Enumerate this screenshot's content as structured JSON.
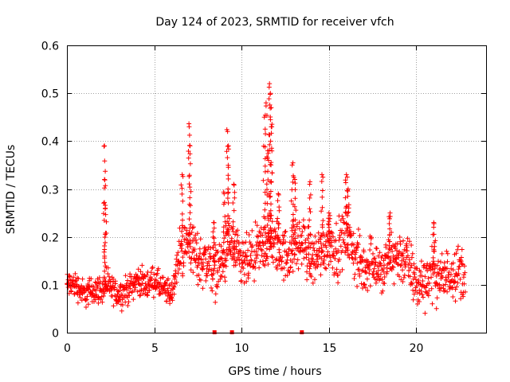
{
  "chart_data": {
    "type": "scatter",
    "title": "Day 124 of 2023, SRMTID for receiver vfch",
    "xlabel": "GPS time / hours",
    "ylabel": "SRMTID / TECUs",
    "xlim": [
      0,
      24
    ],
    "ylim": [
      0,
      0.6
    ],
    "xticks": [
      "0",
      "5",
      "10",
      "15",
      "20"
    ],
    "yticks": [
      "0",
      "0.1",
      "0.2",
      "0.3",
      "0.4",
      "0.5",
      "0.6"
    ],
    "grid": true,
    "marker": "plus",
    "color": "#ff0000",
    "series": [
      {
        "name": "SRMTID",
        "trend": [
          [
            0.0,
            0.1
          ],
          [
            0.5,
            0.1
          ],
          [
            1.0,
            0.08
          ],
          [
            1.5,
            0.09
          ],
          [
            2.0,
            0.09
          ],
          [
            2.3,
            0.1
          ],
          [
            2.5,
            0.09
          ],
          [
            3.0,
            0.08
          ],
          [
            3.5,
            0.09
          ],
          [
            4.0,
            0.11
          ],
          [
            4.5,
            0.1
          ],
          [
            5.0,
            0.11
          ],
          [
            5.5,
            0.09
          ],
          [
            6.0,
            0.08
          ],
          [
            6.2,
            0.12
          ],
          [
            6.5,
            0.17
          ],
          [
            7.0,
            0.19
          ],
          [
            7.5,
            0.15
          ],
          [
            8.0,
            0.15
          ],
          [
            8.5,
            0.13
          ],
          [
            9.0,
            0.15
          ],
          [
            9.3,
            0.19
          ],
          [
            9.5,
            0.17
          ],
          [
            10.0,
            0.14
          ],
          [
            10.5,
            0.15
          ],
          [
            11.0,
            0.17
          ],
          [
            11.5,
            0.19
          ],
          [
            12.0,
            0.18
          ],
          [
            12.5,
            0.16
          ],
          [
            13.0,
            0.18
          ],
          [
            13.5,
            0.19
          ],
          [
            14.0,
            0.15
          ],
          [
            14.5,
            0.17
          ],
          [
            15.0,
            0.19
          ],
          [
            15.5,
            0.17
          ],
          [
            16.0,
            0.21
          ],
          [
            16.5,
            0.16
          ],
          [
            17.0,
            0.13
          ],
          [
            17.5,
            0.16
          ],
          [
            18.0,
            0.12
          ],
          [
            18.5,
            0.16
          ],
          [
            19.0,
            0.16
          ],
          [
            19.5,
            0.15
          ],
          [
            20.0,
            0.1
          ],
          [
            20.5,
            0.11
          ],
          [
            21.0,
            0.13
          ],
          [
            21.5,
            0.11
          ],
          [
            22.0,
            0.13
          ],
          [
            22.5,
            0.13
          ],
          [
            22.8,
            0.12
          ]
        ],
        "spikes": [
          [
            2.15,
            0.39
          ],
          [
            2.15,
            0.32
          ],
          [
            2.2,
            0.26
          ],
          [
            6.6,
            0.33
          ],
          [
            7.0,
            0.43
          ],
          [
            7.05,
            0.39
          ],
          [
            8.4,
            0.23
          ],
          [
            9.0,
            0.29
          ],
          [
            9.2,
            0.42
          ],
          [
            9.25,
            0.39
          ],
          [
            9.55,
            0.31
          ],
          [
            11.3,
            0.45
          ],
          [
            11.4,
            0.48
          ],
          [
            11.6,
            0.52
          ],
          [
            11.65,
            0.5
          ],
          [
            11.7,
            0.47
          ],
          [
            11.7,
            0.43
          ],
          [
            11.5,
            0.38
          ],
          [
            12.1,
            0.29
          ],
          [
            12.9,
            0.35
          ],
          [
            13.05,
            0.32
          ],
          [
            13.9,
            0.31
          ],
          [
            14.6,
            0.33
          ],
          [
            15.0,
            0.25
          ],
          [
            16.0,
            0.33
          ],
          [
            16.1,
            0.3
          ],
          [
            18.5,
            0.25
          ],
          [
            21.0,
            0.23
          ]
        ],
        "ground_markers": [
          8.45,
          9.45,
          13.45
        ]
      }
    ]
  }
}
